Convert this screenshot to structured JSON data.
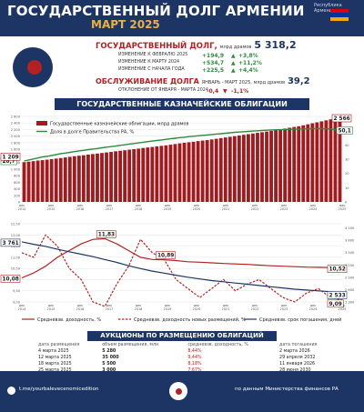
{
  "header": {
    "title": "ГОСУДАРСТВЕННЫЙ ДОЛГ АРМЕНИИ",
    "subtitle": "МАРТ 2025",
    "country": "Республика Армения",
    "flag_colors": [
      "#d90012",
      "#0033a0",
      "#f2a800"
    ]
  },
  "debt": {
    "label": "ГОСУДАРСТВЕННЫЙ ДОЛГ,",
    "unit": "млрд драмов",
    "value": "5 318,2",
    "changes": [
      {
        "label": "ИЗМЕНЕНИЕ К ФЕВРАЛЮ 2025",
        "abs": "+194,9",
        "pct": "+3,8%"
      },
      {
        "label": "ИЗМЕНЕНИЕ К МАРТУ 2024",
        "abs": "+534,7",
        "pct": "+11,2%"
      },
      {
        "label": "ИЗМЕНЕНИЕ С НАЧАЛА ГОДА",
        "abs": "+225,5",
        "pct": "+4,4%"
      }
    ]
  },
  "service": {
    "label": "ОБСЛУЖИВАНИЕ ДОЛГА",
    "period": "ЯНВАРЬ - МАРТ 2025, млрд драмов",
    "value": "39,2",
    "change_label": "ОТКЛОНЕНИЕ ОТ ЯНВАРЯ - МАРТА 2024",
    "change_abs": "-0,4",
    "change_pct": "-1,1%"
  },
  "treasury": {
    "section_title": "ГОСУДАРСТВЕННЫЕ КАЗНАЧЕЙСКИЕ ОБЛИГАЦИИ"
  },
  "auctions": {
    "section_title": "АУКЦИОНЫ ПО РАЗМЕЩЕНИЮ ОБЛИГАЦИЙ",
    "headers": [
      "дата размещения",
      "объем размещения, млн",
      "средневзв. доходность, %",
      "дата погашения"
    ],
    "rows": [
      [
        "4 марта 2025",
        "5 280",
        "8,44%",
        "2 марта 2026"
      ],
      [
        "12 марта 2025",
        "35 000",
        "9,44%",
        "29 апреля 2032"
      ],
      [
        "18 марта 2025",
        "5 500",
        "8,18%",
        "11 января 2026"
      ],
      [
        "25 марта 2025",
        "3 000",
        "7,67%",
        "28 июня 2030"
      ]
    ]
  },
  "footer": {
    "link": "t.me/yourbalevecenomicedition",
    "source": "по данным Министерства финансов РА"
  },
  "chart_data": [
    {
      "type": "bar",
      "title": "",
      "series": [
        {
          "name": "Государственные казначейские облигации, млрд драмов",
          "type": "bar",
          "values": [
            1209,
            1225,
            1240,
            1258,
            1270,
            1285,
            1300,
            1318,
            1335,
            1352,
            1370,
            1388,
            1405,
            1420,
            1440,
            1455,
            1470,
            1488,
            1505,
            1520,
            1540,
            1555,
            1570,
            1588,
            1605,
            1620,
            1640,
            1655,
            1670,
            1690,
            1705,
            1720,
            1740,
            1760,
            1780,
            1800,
            1815,
            1830,
            1850,
            1865,
            1880,
            1900,
            1920,
            1940,
            1960,
            1980,
            2000,
            2020,
            2040,
            2060,
            2080,
            2100,
            2120,
            2140,
            2160,
            2180,
            2205,
            2230,
            2255,
            2280,
            2300,
            2330,
            2360,
            2390,
            2420,
            2450,
            2480,
            2510,
            2540,
            2566
          ]
        },
        {
          "name": "Доля в долге Правительства РА, %",
          "type": "line",
          "values": [
            28.7,
            29.4,
            30.1,
            30.8,
            31.5,
            32.0,
            32.6,
            33.2,
            33.8,
            34.3,
            34.8,
            35.3,
            35.8,
            36.2,
            36.7,
            37.1,
            37.5,
            38.0,
            38.4,
            38.8,
            39.2,
            39.7,
            40.1,
            40.6,
            41.0,
            41.4,
            41.9,
            42.3,
            42.7,
            43.1,
            43.5,
            43.9,
            44.3,
            44.7,
            45.1,
            45.4,
            45.8,
            46.1,
            46.4,
            46.7,
            47.0,
            47.3,
            47.6,
            47.9,
            48.2,
            48.5,
            48.8,
            49.0,
            49.3,
            49.5,
            49.7,
            49.9,
            50.1,
            50.3,
            50.5,
            50.6,
            50.7,
            50.8,
            50.9,
            51.0,
            51.1,
            51.2,
            51.3,
            51.4,
            51.5,
            51.4,
            51.3,
            51.2,
            50.8,
            50.1
          ]
        }
      ],
      "labels": {
        "bar_first": "1 209",
        "bar_last": "2 566",
        "line_first": "28,7",
        "line_last": "50,1"
      },
      "y_left": {
        "min": 0,
        "max": 2600,
        "ticks": [
          "0",
          "200",
          "400",
          "600",
          "800",
          "1 000",
          "1 200",
          "1 400",
          "1 600",
          "1 800",
          "2 000",
          "2 200",
          "2 400",
          "2 600"
        ]
      },
      "y_right": {
        "min": 0,
        "max": 60,
        "ticks": [
          "0",
          "10",
          "20",
          "30",
          "40",
          "50",
          "60"
        ]
      },
      "x_ticks": [
        "дек 2014",
        "дек 2015",
        "дек 2016",
        "дек 2017",
        "дек 2018",
        "дек 2019",
        "дек 2020",
        "дек 2021",
        "дек 2022",
        "дек 2023",
        "дек 2024",
        "мар 2025"
      ]
    },
    {
      "type": "line",
      "title": "",
      "series": [
        {
          "name": "Средневзв. доходность, %",
          "style": "solid",
          "color": "#b22222",
          "values": [
            10.08,
            10.3,
            10.6,
            11.0,
            11.3,
            11.6,
            11.8,
            11.83,
            11.6,
            11.3,
            11.0,
            10.9,
            10.89,
            10.85,
            10.8,
            10.78,
            10.75,
            10.72,
            10.7,
            10.68,
            10.65,
            10.62,
            10.6,
            10.58,
            10.56,
            10.55,
            10.54,
            10.52
          ]
        },
        {
          "name": "Средневзв. доходность новых размещений, %",
          "style": "dashed",
          "color": "#b22222",
          "values": [
            11.2,
            11.0,
            12.0,
            11.5,
            10.5,
            10.0,
            9.0,
            8.8,
            9.8,
            10.6,
            11.8,
            11.2,
            10.9,
            10.0,
            9.6,
            9.2,
            9.6,
            10.0,
            9.5,
            9.8,
            10.0,
            9.6,
            9.2,
            9.0,
            9.4,
            9.6,
            9.2,
            9.09
          ]
        },
        {
          "name": "Средневзв. срок погашения, дней",
          "style": "solid",
          "color": "#1d3564",
          "values": [
            3761,
            3700,
            3650,
            3580,
            3520,
            3460,
            3400,
            3330,
            3260,
            3180,
            3110,
            3050,
            3000,
            2950,
            2900,
            2860,
            2820,
            2790,
            2760,
            2730,
            2700,
            2670,
            2640,
            2610,
            2590,
            2570,
            2550,
            2533
          ]
        }
      ],
      "labels": {
        "a": "3 761",
        "b": "10,08",
        "c": "11,83",
        "d": "10,89",
        "e": "10,52",
        "f": "9,09",
        "g": "2 533"
      },
      "y_left": {
        "min": 9.0,
        "max": 12.5,
        "ticks": [
          "9,00",
          "9,50",
          "10,00",
          "10,50",
          "11,00",
          "11,50",
          "12,00",
          "12,50"
        ]
      },
      "y_right": {
        "min": 2300,
        "max": 4200,
        "ticks": [
          "2 300",
          "2 600",
          "2 900",
          "3 200",
          "3 500",
          "3 800",
          "4 100"
        ]
      },
      "x_ticks": [
        "дек 2014",
        "дек 2015",
        "дек 2016",
        "дек 2017",
        "дек 2018",
        "дек 2019",
        "дек 2020",
        "дек 2021",
        "дек 2022",
        "дек 2023",
        "дек 2024",
        "мар 2025"
      ]
    }
  ]
}
